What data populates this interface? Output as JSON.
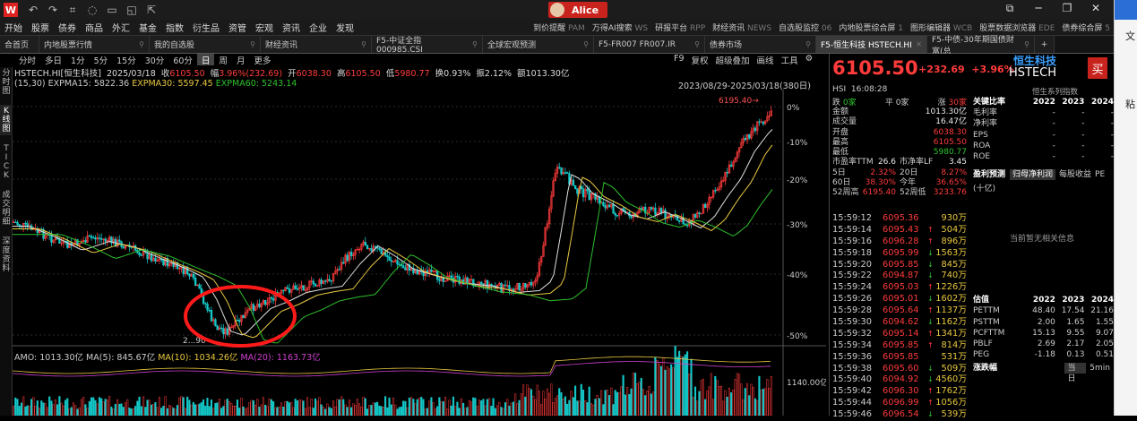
{
  "titlebar": {
    "app_label": "开始",
    "icons": [
      "back-icon",
      "forward-icon",
      "crop-icon",
      "chat-icon",
      "monitor-icon",
      "alert-icon",
      "share-icon"
    ],
    "user": "Alice",
    "logo": "W"
  },
  "menu": {
    "items": [
      "开始",
      "股票",
      "债券",
      "商品",
      "外汇",
      "基金",
      "指数",
      "衍生品",
      "资管",
      "宏观",
      "资讯",
      "企业",
      "发现"
    ],
    "right": [
      {
        "t": "到价提醒",
        "k": "PAM"
      },
      {
        "t": "万得AI搜索",
        "k": "WS"
      },
      {
        "t": "研报平台",
        "k": "RPP"
      },
      {
        "t": "财经资讯",
        "k": "NEWS"
      },
      {
        "t": "自选股监控",
        "k": "06"
      },
      {
        "t": "内地股票综合屏",
        "k": "1"
      },
      {
        "t": "图形编辑器",
        "k": "WCB"
      },
      {
        "t": "股票数据浏览器",
        "k": "EDE"
      },
      {
        "t": "债券综合屏",
        "k": "5"
      }
    ]
  },
  "tabs": [
    {
      "label": "合首页",
      "w": 44
    },
    {
      "label": "内地股票行情",
      "w": 123
    },
    {
      "label": "我的自选股",
      "w": 124
    },
    {
      "label": "财经资讯",
      "w": 124
    },
    {
      "label": "F5-中证全指 000985.CSI",
      "w": 124
    },
    {
      "label": "全球宏观预测",
      "w": 124
    },
    {
      "label": "F5-FR007 FR007.IR",
      "w": 124
    },
    {
      "label": "债券市场",
      "w": 124
    },
    {
      "label": "F5-恒生科技 HSTECH.HI",
      "w": 124,
      "active": true
    },
    {
      "label": "F5-中债-30年期国债财富(总",
      "w": 120
    }
  ],
  "periods": [
    "分时",
    "多日",
    "1分",
    "5分",
    "15分",
    "30分",
    "60分",
    "日",
    "周",
    "月",
    "更多"
  ],
  "active_period": "日",
  "chart_tools": [
    "F9",
    "复权",
    "超级叠加",
    "画线",
    "工具",
    "⚙"
  ],
  "left_strip": [
    "分时图",
    "K线图",
    "TICK",
    "成交明细",
    "深度资料"
  ],
  "header": {
    "name": "HSTECH.HI[恒生科技]",
    "date": "2025/03/18",
    "close_l": "收",
    "close": "6105.50",
    "amp_l": "幅",
    "amp": "3.96%(232.69)",
    "open_l": "开",
    "open": "6038.30",
    "high_l": "高",
    "high": "6105.50",
    "low_l": "低",
    "low": "5980.77",
    "turn": "换0.93%",
    "zhen": "振2.12%",
    "amount": "额1013.30亿"
  },
  "ema": {
    "param": "(15,30)",
    "e15": "EXPMA15: 5822.36",
    "e30": "EXPMA30: 5597.45",
    "e60": "EXPMA60: 5243.14"
  },
  "range": "2023/08/29-2025/03/18(380日)",
  "chart_data": {
    "type": "candlestick",
    "y_ticks": [
      "0%",
      "-10%",
      "-20%",
      "-30%",
      "-40%",
      "-50%"
    ],
    "max_label": "6195.40",
    "min_label": "2...90",
    "vol_tick": "1140.00亿"
  },
  "amo": {
    "amo": "AMO: 1013.30亿",
    "ma5": "MA(5): 845.67亿",
    "ma10": "MA(10): 1034.26亿",
    "ma20": "MA(20): 1163.73亿"
  },
  "quote": {
    "price": "6105.50",
    "chg": "+232.69",
    "pct": "+3.96%",
    "name1": "恒生科技",
    "name2": "HSTECH",
    "code": "HSI",
    "time": "16:08:28",
    "series": "恒生系列指数",
    "depth": [
      {
        "l": "跌",
        "v": "0家"
      },
      {
        "l": "平",
        "v": "0家"
      },
      {
        "l": "涨",
        "v": "30家"
      }
    ],
    "stats": [
      [
        "金额",
        "1013.30亿",
        "",
        ""
      ],
      [
        "成交量",
        "16.47亿",
        "",
        ""
      ],
      [
        "开盘",
        "6038.30",
        "",
        ""
      ],
      [
        "最高",
        "6105.50",
        "",
        ""
      ],
      [
        "最低",
        "5980.77",
        "",
        ""
      ],
      [
        "市盈率TTM",
        "26.6",
        "市净率LF",
        "3.45"
      ],
      [
        "5日",
        "2.32%",
        "20日",
        "8.27%"
      ],
      [
        "60日",
        "38.30%",
        "今年",
        "36.65%"
      ],
      [
        "52周高",
        "6195.40",
        "52周低",
        "3233.76"
      ]
    ],
    "trades": [
      [
        "15:59:12",
        "6095.36",
        "",
        "930万"
      ],
      [
        "15:59:14",
        "6095.43",
        "↑",
        "504万"
      ],
      [
        "15:59:16",
        "6096.28",
        "↑",
        "896万"
      ],
      [
        "15:59:18",
        "6095.99",
        "↓",
        "1563万"
      ],
      [
        "15:59:20",
        "6095.85",
        "↓",
        "845万"
      ],
      [
        "15:59:22",
        "6094.87",
        "↓",
        "740万"
      ],
      [
        "15:59:24",
        "6095.03",
        "↑",
        "1226万"
      ],
      [
        "15:59:26",
        "6095.01",
        "↓",
        "1602万"
      ],
      [
        "15:59:28",
        "6095.64",
        "↑",
        "1137万"
      ],
      [
        "15:59:30",
        "6094.62",
        "↓",
        "1162万"
      ],
      [
        "15:59:32",
        "6095.14",
        "↑",
        "1341万"
      ],
      [
        "15:59:34",
        "6095.85",
        "↑",
        "814万"
      ],
      [
        "15:59:36",
        "6095.85",
        "",
        "531万"
      ],
      [
        "15:59:38",
        "6095.60",
        "↓",
        "509万"
      ],
      [
        "15:59:40",
        "6094.92",
        "↓",
        "4560万"
      ],
      [
        "15:59:42",
        "6096.30",
        "↑",
        "1762万"
      ],
      [
        "15:59:44",
        "6096.99",
        "↑",
        "1056万"
      ],
      [
        "15:59:46",
        "6096.54",
        "↓",
        "539万"
      ]
    ]
  },
  "keyratios": {
    "title": "关键比率",
    "years": [
      "2022",
      "2023",
      "2024"
    ],
    "rows": [
      [
        "毛利率",
        "-",
        "-",
        "-"
      ],
      [
        "净利率",
        "-",
        "-",
        "-"
      ],
      [
        "EPS",
        "-",
        "-",
        "-"
      ],
      [
        "ROA",
        "-",
        "-",
        "-"
      ],
      [
        "ROE",
        "-",
        "-",
        "-"
      ]
    ],
    "forecast": "盈利预测",
    "tab1": "归母净利润",
    "tab2": "每股收益",
    "tab3": "PE",
    "unit": "(十亿)",
    "empty": "当前暂无相关信息"
  },
  "valuation": {
    "title": "估值",
    "years": [
      "2022",
      "2023",
      "2024"
    ],
    "rows": [
      [
        "PETTM",
        "48.40",
        "17.54",
        "21.16"
      ],
      [
        "PSTTM",
        "2.00",
        "1.65",
        "1.55"
      ],
      [
        "PCFTTM",
        "15.13",
        "9.55",
        "9.07"
      ],
      [
        "PBLF",
        "2.69",
        "2.17",
        "2.05"
      ],
      [
        "PEG",
        "-1.18",
        "0.13",
        "0.51"
      ]
    ],
    "more": "涨跌幅",
    "btn1": "当日",
    "btn2": "5min"
  },
  "edge": {
    "a": "文",
    "b": "粘"
  }
}
